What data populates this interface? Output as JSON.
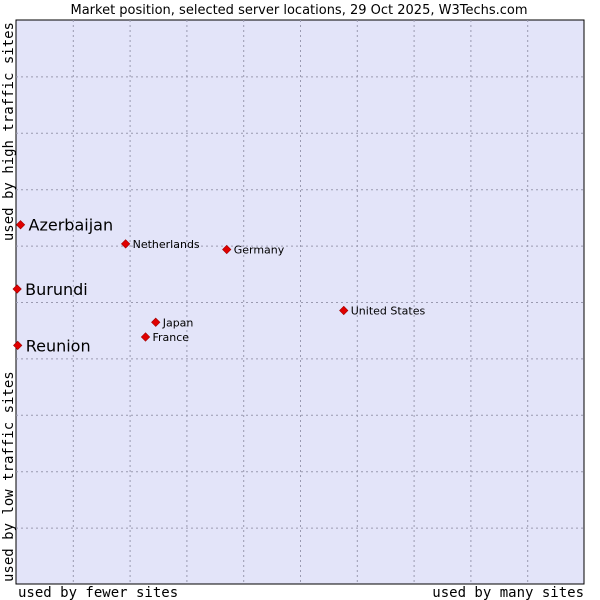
{
  "chart_data": {
    "type": "scatter",
    "title": "Market position, selected server locations, 29 Oct 2025, W3Techs.com",
    "xlabel_left": "used by fewer sites",
    "xlabel_right": "used by many sites",
    "ylabel_bottom": "used by low traffic sites",
    "ylabel_top": "used by high traffic sites",
    "xlim": [
      0,
      100
    ],
    "ylim": [
      0,
      100
    ],
    "grid": true,
    "background_color": "#e3e4f9",
    "marker_color": "#e00000",
    "points": [
      {
        "label": "Azerbaijan",
        "x": 0.8,
        "y": 63.7,
        "highlight": true
      },
      {
        "label": "Burundi",
        "x": 0.2,
        "y": 52.3,
        "highlight": true
      },
      {
        "label": "Reunion",
        "x": 0.3,
        "y": 42.3,
        "highlight": true
      },
      {
        "label": "Netherlands",
        "x": 19.3,
        "y": 60.3,
        "highlight": false
      },
      {
        "label": "Germany",
        "x": 37.1,
        "y": 59.3,
        "highlight": false
      },
      {
        "label": "United States",
        "x": 57.7,
        "y": 48.5,
        "highlight": false
      },
      {
        "label": "Japan",
        "x": 24.6,
        "y": 46.4,
        "highlight": false
      },
      {
        "label": "France",
        "x": 22.8,
        "y": 43.8,
        "highlight": false
      }
    ]
  }
}
